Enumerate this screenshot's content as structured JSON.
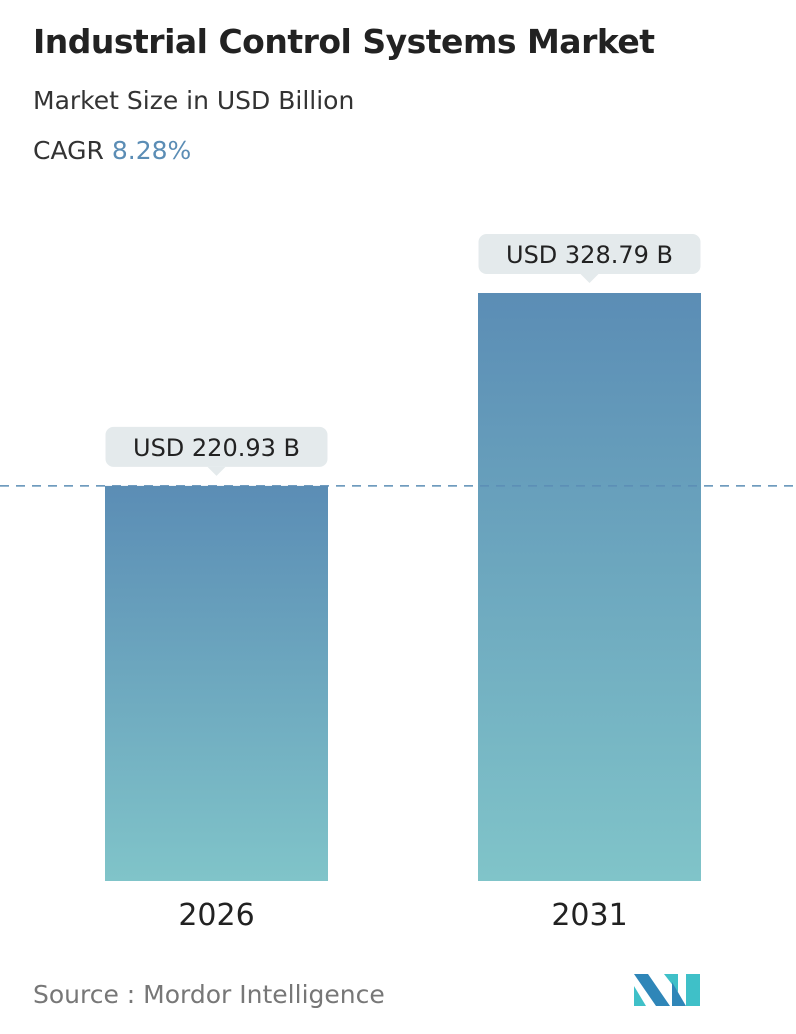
{
  "header": {
    "title": "Industrial Control Systems Market",
    "subtitle": "Market Size in USD Billion",
    "cagr_label": "CAGR",
    "cagr_value": "8.28%"
  },
  "chart_data": {
    "type": "bar",
    "categories": [
      "2026",
      "2031"
    ],
    "values": [
      220.93,
      328.79
    ],
    "data_labels": [
      "USD 220.93 B",
      "USD 328.79 B"
    ],
    "ylim": [
      0,
      328.79
    ],
    "reference_line": 220.93,
    "colors": {
      "bar_top": "#5b8db5",
      "bar_bottom": "#80c4c9",
      "label_bg": "#e4eaec",
      "reference_line": "#5b8db5"
    }
  },
  "footer": {
    "source": "Source :  Mordor Intelligence"
  },
  "logo": {
    "text": "MI"
  }
}
